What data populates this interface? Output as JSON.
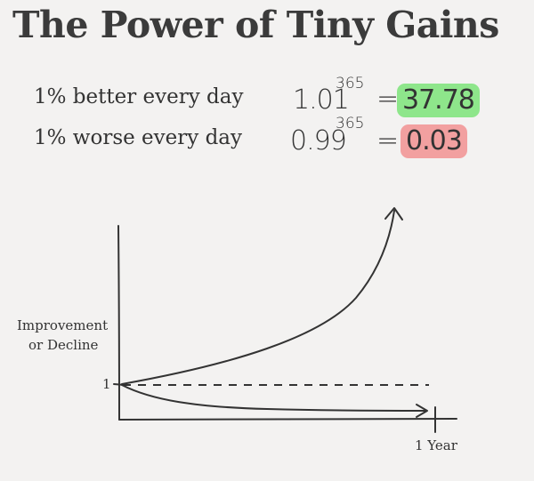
{
  "title": "The Power of Tiny Gains",
  "rows": [
    {
      "label": "1% better every day",
      "base": "1.01",
      "exponent": "365",
      "equals": "=",
      "result": "37.78"
    },
    {
      "label": "1% worse every day",
      "base": "0.99",
      "exponent": "365",
      "equals": "=",
      "result": "0.03"
    }
  ],
  "colors": {
    "better_highlight": "#8ee68b",
    "worse_highlight": "#f2a0a0",
    "ink": "#333333"
  },
  "graph": {
    "y_axis_label_line1": "Improvement",
    "y_axis_label_line2": "or Decline",
    "y_tick_label": "1",
    "x_tick_label": "1 Year",
    "curves": [
      "growth-curve",
      "decline-curve",
      "baseline-dashed"
    ]
  }
}
